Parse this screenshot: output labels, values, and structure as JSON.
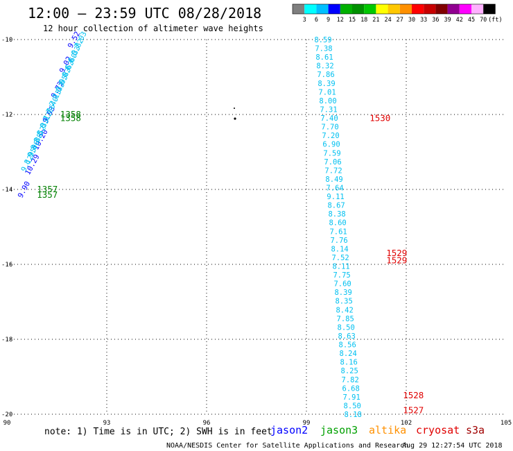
{
  "title": "12:00 – 23:59 UTC 08/28/2018",
  "subtitle": "12 hour collection of altimeter wave heights",
  "colorbar": {
    "colors": [
      "#7f7f7f",
      "#00ffff",
      "#00bfff",
      "#0000ff",
      "#00b000",
      "#009000",
      "#00c800",
      "#ffff00",
      "#ffc800",
      "#ff9000",
      "#ff0000",
      "#c80000",
      "#800000",
      "#900090",
      "#ff00ff",
      "#ffb0ff",
      "#000000"
    ],
    "labels": [
      "3",
      "6",
      "9",
      "12",
      "15",
      "18",
      "21",
      "24",
      "27",
      "30",
      "33",
      "36",
      "39",
      "42",
      "45",
      "70",
      "(ft)"
    ]
  },
  "chart_data": {
    "type": "scatter",
    "x_ticks": [
      "90",
      "93",
      "96",
      "99",
      "102",
      "105"
    ],
    "y_ticks": [
      "-10",
      "-12",
      "-14",
      "-16",
      "-18",
      "-20"
    ],
    "xlim": [
      90,
      105
    ],
    "ylim": [
      -20,
      -10
    ],
    "grid": true,
    "tracks": [
      {
        "satellite": "jason3",
        "color": "#00c0f0",
        "x_start": 99.5,
        "y_start": -10.0,
        "x_end": 100.4,
        "y_end": -20.0,
        "values": [
          "8.59",
          "7.38",
          "8.61",
          "8.32",
          "7.86",
          "8.39",
          "7.01",
          "8.00",
          "7.31",
          "7.40",
          "7.70",
          "7.20",
          "6.90",
          "7.59",
          "7.06",
          "7.72",
          "8.49",
          "7.64",
          "9.11",
          "8.67",
          "8.38",
          "8.60",
          "7.61",
          "7.76",
          "8.14",
          "7.52",
          "8.11",
          "7.75",
          "7.60",
          "8.39",
          "8.35",
          "8.42",
          "7.85",
          "8.50",
          "8.63",
          "8.56",
          "8.24",
          "8.16",
          "8.25",
          "7.82",
          "6.68",
          "7.91",
          "8.50",
          "8.18"
        ]
      },
      {
        "satellite": "jason2",
        "color": "#0000ff",
        "x_start": 90.5,
        "y_start": -14.0,
        "x_end": 92.0,
        "y_end": -10.0,
        "values": [
          "9.90",
          "10.29",
          "10.20",
          "9.93",
          "9.73",
          "9.02",
          "9.52"
        ]
      },
      {
        "satellite": "jason3",
        "color": "#00c0f0",
        "x_start": 90.6,
        "y_start": -13.3,
        "x_end": 92.2,
        "y_end": -10.0,
        "values": [
          "9.12",
          "8.95",
          "9.06",
          "8.88",
          "8.52",
          "8.33",
          "8.12",
          "7.86",
          "7.40",
          "7.15",
          "7.33",
          "6.95",
          "6.83",
          "6.63",
          "6.60",
          "6.33",
          "6.82",
          "7.03"
        ]
      }
    ],
    "time_labels": [
      {
        "text": "1530",
        "x": 100.9,
        "y": -12.1,
        "color": "#e00000"
      },
      {
        "text": "1529",
        "x": 101.4,
        "y": -15.7,
        "color": "#e00000"
      },
      {
        "text": "1529",
        "x": 101.4,
        "y": -15.9,
        "color": "#e00000"
      },
      {
        "text": "1528",
        "x": 101.9,
        "y": -19.5,
        "color": "#e00000"
      },
      {
        "text": "1527",
        "x": 101.9,
        "y": -19.9,
        "color": "#e00000"
      },
      {
        "text": "1358",
        "x": 91.6,
        "y": -12.0,
        "color": "#008000"
      },
      {
        "text": "1358",
        "x": 91.6,
        "y": -12.1,
        "color": "#008000"
      },
      {
        "text": "1357",
        "x": 90.9,
        "y": -14.0,
        "color": "#008000"
      },
      {
        "text": "1357",
        "x": 90.9,
        "y": -14.15,
        "color": "#008000"
      }
    ]
  },
  "note": "note: 1) Time is in UTC; 2) SWH is in feet",
  "satellites": [
    {
      "name": "jason2",
      "color": "#0000ff"
    },
    {
      "name": "jason3",
      "color": "#00a000"
    },
    {
      "name": "altika",
      "color": "#ff9000"
    },
    {
      "name": "cryosat",
      "color": "#e00000"
    },
    {
      "name": "s3a",
      "color": "#a00000"
    }
  ],
  "footer_left": "NOAA/NESDIS Center for Satellite Applications and Research",
  "footer_right": "Aug 29 12:27:54 UTC 2018"
}
